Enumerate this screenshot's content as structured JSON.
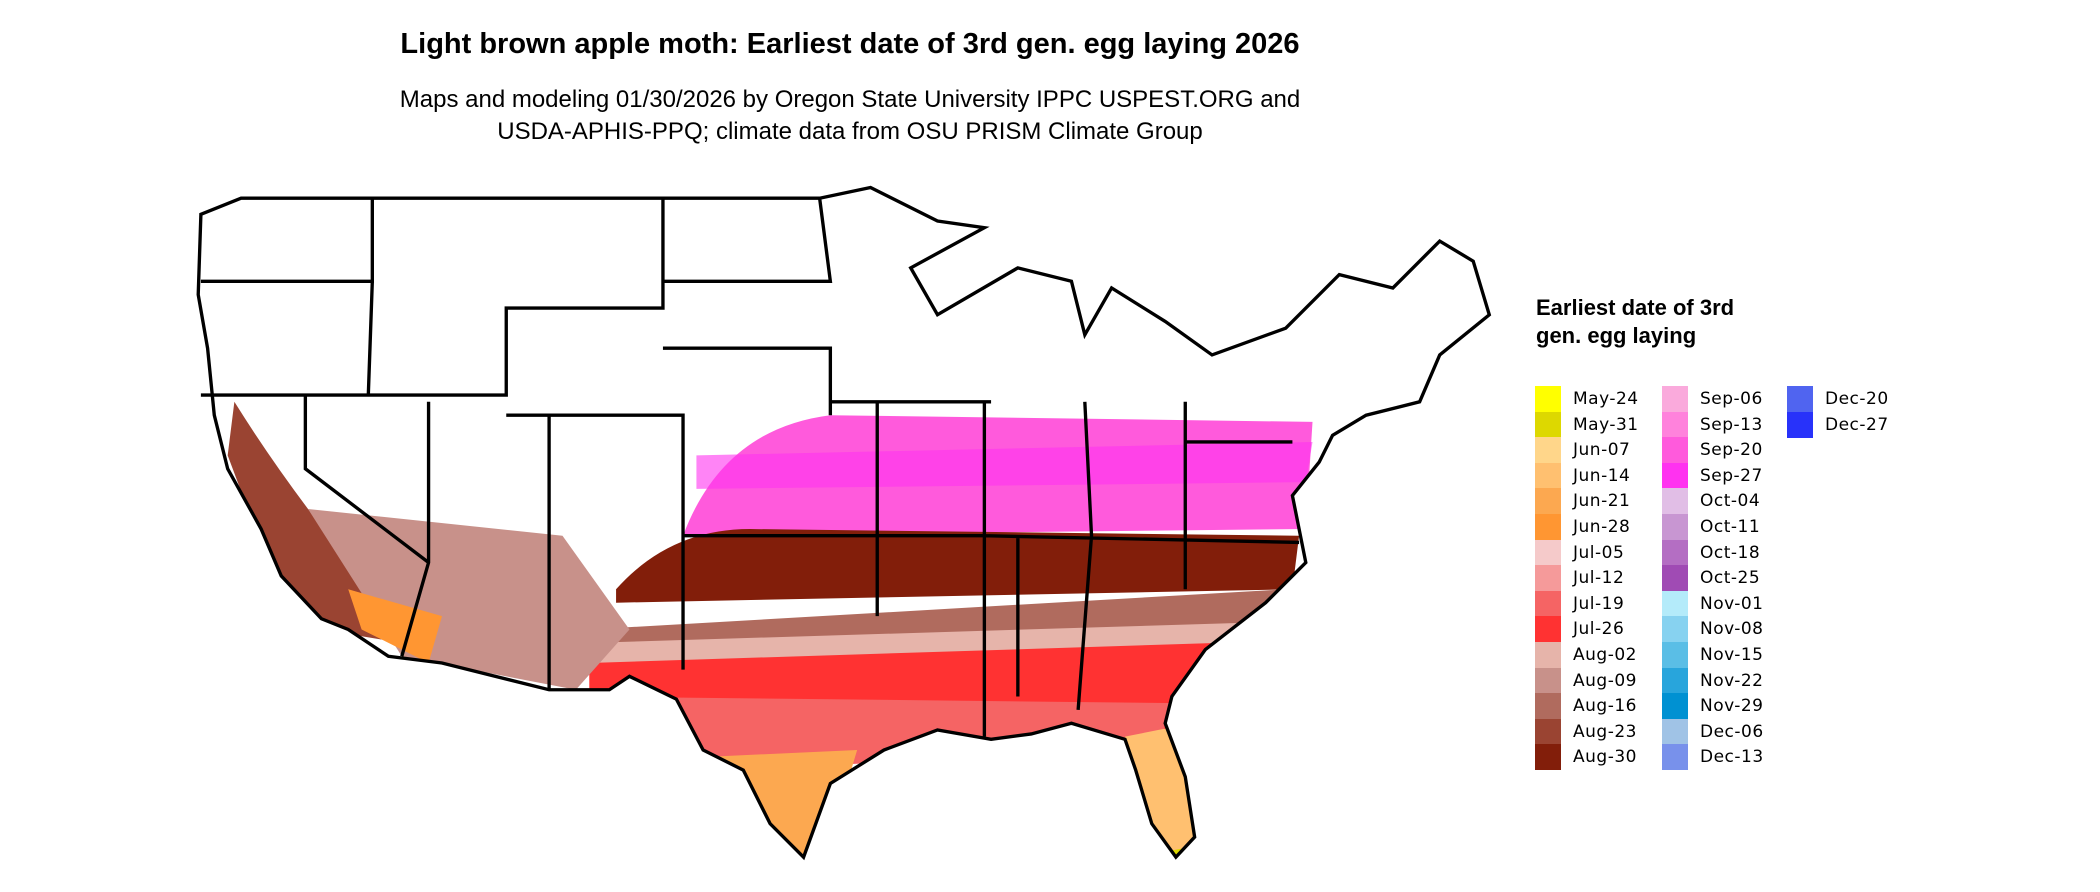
{
  "title": "Light brown apple moth: Earliest date of 3rd gen. egg laying 2026",
  "subtitle_lines": [
    "Maps and modeling 01/30/2026 by Oregon State University IPPC USPEST.ORG and",
    "USDA-APHIS-PPQ; climate data from OSU PRISM Climate Group"
  ],
  "legend": {
    "title": "Earliest date of 3rd gen. egg laying",
    "items": [
      {
        "label": "May-24",
        "color": "#FFFF00"
      },
      {
        "label": "May-31",
        "color": "#DDD800"
      },
      {
        "label": "Jun-07",
        "color": "#FFD68A"
      },
      {
        "label": "Jun-14",
        "color": "#FFC070"
      },
      {
        "label": "Jun-21",
        "color": "#FCA850"
      },
      {
        "label": "Jun-28",
        "color": "#FF9632"
      },
      {
        "label": "Jul-05",
        "color": "#F5CACA"
      },
      {
        "label": "Jul-12",
        "color": "#F59A9A"
      },
      {
        "label": "Jul-19",
        "color": "#F56464"
      },
      {
        "label": "Jul-26",
        "color": "#FF3232"
      },
      {
        "label": "Aug-02",
        "color": "#E6B4AA"
      },
      {
        "label": "Aug-09",
        "color": "#C8918A"
      },
      {
        "label": "Aug-16",
        "color": "#B06B5E"
      },
      {
        "label": "Aug-23",
        "color": "#9A4432"
      },
      {
        "label": "Aug-30",
        "color": "#821E0A"
      },
      {
        "label": "Sep-06",
        "color": "#FAAADC"
      },
      {
        "label": "Sep-13",
        "color": "#FF82DC"
      },
      {
        "label": "Sep-20",
        "color": "#FF5ADC"
      },
      {
        "label": "Sep-27",
        "color": "#FF32F0"
      },
      {
        "label": "Oct-04",
        "color": "#E1BEE6"
      },
      {
        "label": "Oct-11",
        "color": "#C896D2"
      },
      {
        "label": "Oct-18",
        "color": "#B46EC3"
      },
      {
        "label": "Oct-25",
        "color": "#A04BB4"
      },
      {
        "label": "Nov-01",
        "color": "#B4EBFA"
      },
      {
        "label": "Nov-08",
        "color": "#87D2F0"
      },
      {
        "label": "Nov-15",
        "color": "#5ABEE6"
      },
      {
        "label": "Nov-22",
        "color": "#28A5DC"
      },
      {
        "label": "Nov-29",
        "color": "#0091D2"
      },
      {
        "label": "Dec-06",
        "color": "#A0C3E6"
      },
      {
        "label": "Dec-13",
        "color": "#7891EB"
      },
      {
        "label": "Dec-20",
        "color": "#5064F0"
      },
      {
        "label": "Dec-27",
        "color": "#2832FA"
      }
    ]
  }
}
